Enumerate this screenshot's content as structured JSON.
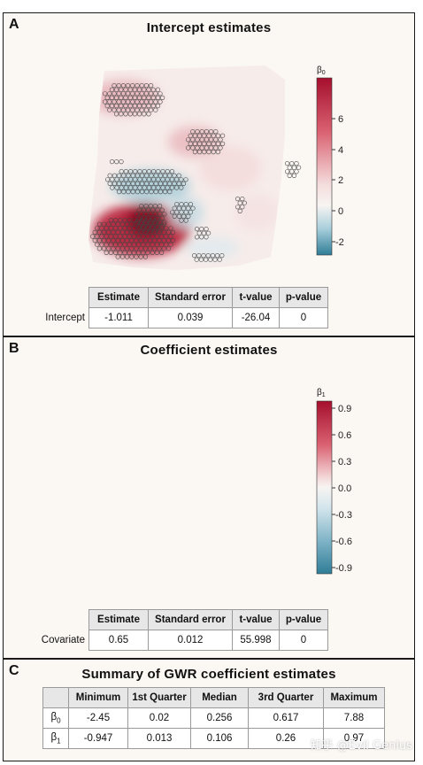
{
  "panels": [
    {
      "letter": "A",
      "title": "Intercept estimates",
      "colorbar": {
        "label_base": "β",
        "label_sub": "0",
        "ticks": [
          "6",
          "4",
          "2",
          "0",
          "-2"
        ]
      },
      "table": {
        "headers": [
          "Estimate",
          "Standard error",
          "t-value",
          "p-value"
        ],
        "row_label": "Intercept",
        "values": [
          "-1.011",
          "0.039",
          "-26.04",
          "0"
        ]
      }
    },
    {
      "letter": "B",
      "title": "Coefficient estimates",
      "colorbar": {
        "label_base": "β",
        "label_sub": "1",
        "ticks": [
          "0.9",
          "0.6",
          "0.3",
          "0.0",
          "-0.3",
          "-0.6",
          "-0.9"
        ]
      },
      "table": {
        "headers": [
          "Estimate",
          "Standard error",
          "t-value",
          "p-value"
        ],
        "row_label": "Covariate",
        "values": [
          "0.65",
          "0.012",
          "55.998",
          "0"
        ]
      }
    }
  ],
  "summary": {
    "letter": "C",
    "title": "Summary of GWR coefficient estimates",
    "headers": [
      "Minimum",
      "1st Quarter",
      "Median",
      "3rd Quarter",
      "Maximum"
    ],
    "rows": [
      {
        "label_base": "β",
        "label_sub": "0",
        "values": [
          "-2.45",
          "0.02",
          "0.256",
          "0.617",
          "7.88"
        ]
      },
      {
        "label_base": "β",
        "label_sub": "1",
        "values": [
          "-0.947",
          "0.013",
          "0.106",
          "0.26",
          "0.97"
        ]
      }
    ]
  },
  "colors": {
    "red": "#a50f2d",
    "blue": "#2f7d97",
    "mid": "#f7f4f2"
  },
  "watermark": "知乎 @Evil Genius"
}
